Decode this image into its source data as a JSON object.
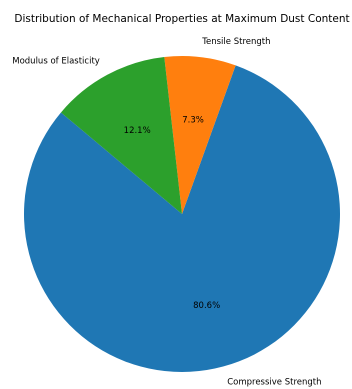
{
  "chart_data": {
    "type": "pie",
    "title": "Distribution of Mechanical Properties at Maximum Dust Content",
    "slices": [
      {
        "label": "Compressive Strength",
        "value": 80.6,
        "pct_label": "80.6%",
        "color": "#1f77b4"
      },
      {
        "label": "Tensile Strength",
        "value": 7.3,
        "pct_label": "7.3%",
        "color": "#ff7f0e"
      },
      {
        "label": "Modulus of Elasticity",
        "value": 12.1,
        "pct_label": "12.1%",
        "color": "#2ca02c"
      }
    ],
    "start_angle_deg": 140,
    "direction": "counterclockwise",
    "legend": "none"
  }
}
